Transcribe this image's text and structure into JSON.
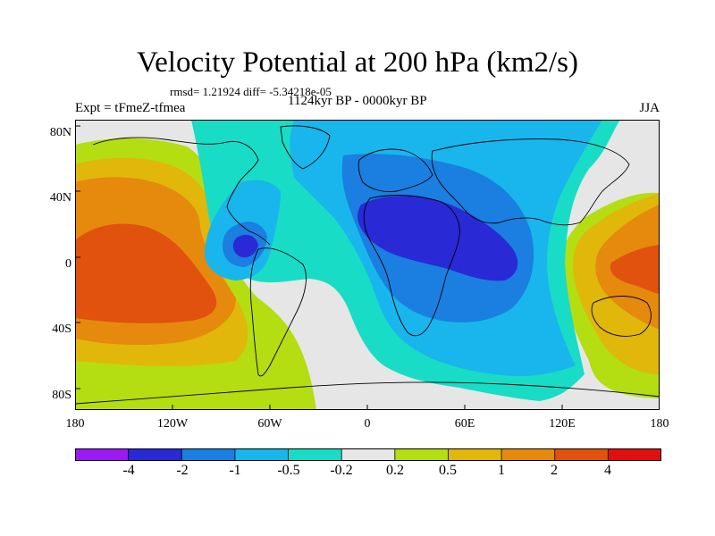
{
  "header": {
    "title": "Velocity Potential at 200 hPa (km2/s)",
    "stats": "rmsd= 1.21924 diff= -5.34218e-05",
    "left": "Expt = tFmeZ-tfmea",
    "center": "1124kyr BP - 0000kyr BP",
    "right": "JJA"
  },
  "axes": {
    "lat_labels": [
      "80N",
      "40N",
      "0",
      "40S",
      "80S"
    ],
    "lon_labels": [
      "180",
      "120W",
      "60W",
      "0",
      "60E",
      "120E",
      "180"
    ]
  },
  "colorbar": {
    "colors": [
      "#9b19f5",
      "#2929d5",
      "#1a7fe0",
      "#18b6ec",
      "#19dcc6",
      "#e6e6e6",
      "#b4dd12",
      "#e0b70a",
      "#e58a0d",
      "#e0520e",
      "#e30f0f"
    ],
    "labels": [
      "-4",
      "-2",
      "-1",
      "-0.5",
      "-0.2",
      "0.2",
      "0.5",
      "1",
      "2",
      "4"
    ]
  },
  "colors": {
    "background": "#e6e6e6",
    "continent_outline": "#000000"
  }
}
